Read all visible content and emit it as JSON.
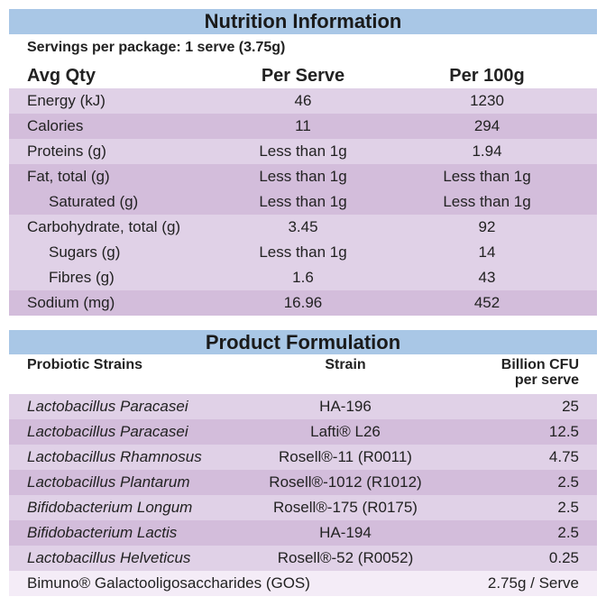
{
  "nutrition": {
    "title": "Nutrition Information",
    "servings": "Servings per package: 1 serve (3.75g)",
    "columns": [
      "Avg Qty",
      "Per Serve",
      "Per 100g"
    ],
    "rows": [
      [
        "Energy (kJ)",
        "46",
        "1230"
      ],
      [
        "Calories",
        "11",
        "294"
      ],
      [
        "Proteins (g)",
        "Less than 1g",
        "1.94"
      ],
      [
        "Fat, total (g)",
        "Less than 1g",
        "Less than 1g"
      ],
      [
        "Saturated (g)",
        "Less than 1g",
        "Less than 1g"
      ],
      [
        "Carbohydrate, total (g)",
        "3.45",
        "92"
      ],
      [
        "Sugars (g)",
        "Less than 1g",
        "14"
      ],
      [
        "Fibres (g)",
        "1.6",
        "43"
      ],
      [
        "Sodium (mg)",
        "16.96",
        "452"
      ]
    ]
  },
  "formulation": {
    "title": "Product Formulation",
    "columns": [
      "Probiotic Strains",
      "Strain",
      "Billion CFU\nper serve"
    ],
    "rows": [
      [
        "Lactobacillus Paracasei",
        "HA-196",
        "25"
      ],
      [
        "Lactobacillus Paracasei",
        "Lafti® L26",
        "12.5"
      ],
      [
        "Lactobacillus Rhamnosus",
        "Rosell®-11 (R0011)",
        "4.75"
      ],
      [
        "Lactobacillus Plantarum",
        "Rosell®-1012 (R1012)",
        "2.5"
      ],
      [
        "Bifidobacterium Longum",
        "Rosell®-175 (R0175)",
        "2.5"
      ],
      [
        "Bifidobacterium Lactis",
        "HA-194",
        "2.5"
      ],
      [
        "Lactobacillus Helveticus",
        "Rosell®-52 (R0052)",
        "0.25"
      ]
    ],
    "footer": [
      "Bimuno® Galactooligosaccharides (GOS)",
      "2.75g / Serve"
    ]
  }
}
